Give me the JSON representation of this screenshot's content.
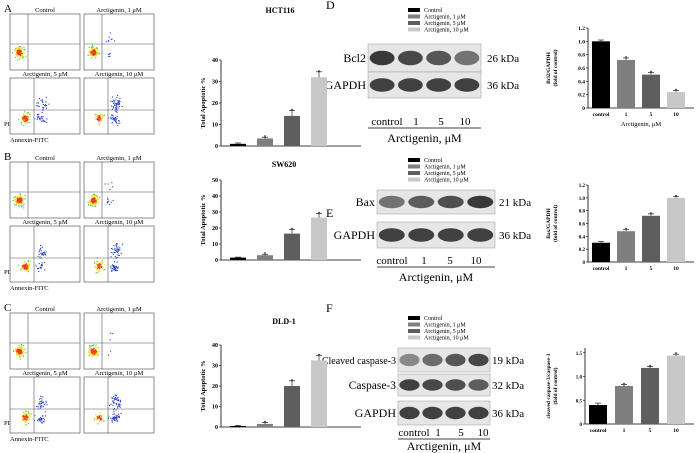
{
  "panels": {
    "A": {
      "letter": "A",
      "flow_labels": [
        "Control",
        "Arctigenin, 1 μM",
        "Arctigenin, 5 μM",
        "Arctigenin, 10 μM"
      ],
      "axis_x": "Annexin-FITC",
      "axis_y": "PI"
    },
    "B": {
      "letter": "B",
      "flow_labels": [
        "Control",
        "Arctigenin, 1 μM",
        "Arctigenin, 5 μM",
        "Arctigenin, 10 μM"
      ],
      "axis_x": "Annexin-FITC",
      "axis_y": "PI"
    },
    "C": {
      "letter": "C",
      "flow_labels": [
        "Control",
        "Arctigenin, 1 μM",
        "Arctigenin, 5 μM",
        "Arctigenin, 10 μM"
      ],
      "axis_x": "Annexin-FITC",
      "axis_y": "PI"
    },
    "D": {
      "letter": "D",
      "bands": [
        "Bcl2",
        "GAPDH"
      ],
      "kda": [
        "26 kDa",
        "36 kDa"
      ],
      "lanes": [
        "control",
        "1",
        "5",
        "10"
      ],
      "treatment": "Arctigenin, μM"
    },
    "E": {
      "letter": "E",
      "bands": [
        "Bax",
        "GAPDH"
      ],
      "kda": [
        "21 kDa",
        "36 kDa"
      ],
      "lanes": [
        "control",
        "1",
        "5",
        "10"
      ],
      "treatment": "Arctigenin, μM"
    },
    "F": {
      "letter": "F",
      "bands": [
        "Cleaved caspase-3",
        "Caspase-3",
        "GAPDH"
      ],
      "kda": [
        "19 kDa",
        "32 kDa",
        "36 kDa"
      ],
      "lanes": [
        "control",
        "1",
        "5",
        "10"
      ],
      "treatment": "Arctigenin, μM"
    }
  },
  "colors": {
    "control": "#000000",
    "dose1": "#7f7f7f",
    "dose5": "#5e5e5e",
    "dose10": "#c8c8c8"
  },
  "chart_data": [
    {
      "type": "bar",
      "title": "HCT116",
      "ylabel": "Total Apoptotic %",
      "categories": [
        "Control",
        "Arctigenin, 1 μM",
        "Arctigenin, 5 μM",
        "Arctigenin, 10 μM"
      ],
      "values": [
        1,
        3.5,
        14,
        32
      ],
      "errors": [
        0.4,
        0.6,
        2.5,
        2.5
      ],
      "sig": [
        "",
        "*",
        "*",
        "*"
      ],
      "yticks": [
        0,
        10,
        20,
        30,
        40
      ],
      "ytick_labels": [
        "0",
        "10",
        "20",
        "30",
        "40"
      ],
      "ylim": [
        0,
        40
      ],
      "legend": [
        "Control",
        "Arctigenin, 1 μM",
        "Arctigenin, 5 μM",
        "Arctigenin, 10 μM"
      ],
      "legend_position": "top-right"
    },
    {
      "type": "bar",
      "title": "SW620",
      "ylabel": "Total Apoptotic %",
      "categories": [
        "Control",
        "Arctigenin, 1 μM",
        "Arctigenin, 5 μM",
        "Arctigenin, 10 μM"
      ],
      "values": [
        1.5,
        3,
        16.5,
        26.5
      ],
      "errors": [
        0.3,
        0.6,
        2.5,
        2.5
      ],
      "sig": [
        "",
        "*",
        "*",
        "*"
      ],
      "yticks": [
        0,
        10,
        20,
        30,
        40,
        50
      ],
      "ytick_labels": [
        "0",
        "10",
        "20",
        "30",
        "40",
        "50"
      ],
      "ylim": [
        0,
        50
      ],
      "legend": [
        "Control",
        "Arctigenin, 1 μM",
        "Arctigenin, 5 μM",
        "Arctigenin, 10 μM"
      ],
      "legend_position": "top-right"
    },
    {
      "type": "bar",
      "title": "DLD-1",
      "ylabel": "Total Apoptotic %",
      "categories": [
        "Control",
        "Arctigenin, 1 μM",
        "Arctigenin, 5 μM",
        "Arctigenin, 10 μM"
      ],
      "values": [
        0.5,
        1.5,
        20,
        32.5
      ],
      "errors": [
        0.3,
        0.6,
        2.5,
        2.5
      ],
      "sig": [
        "",
        "*",
        "*",
        "*"
      ],
      "yticks": [
        0,
        10,
        20,
        30,
        40
      ],
      "ytick_labels": [
        "0",
        "10",
        "20",
        "30",
        "40"
      ],
      "ylim": [
        0,
        40
      ],
      "legend": [
        "Control",
        "Arctigenin, 1 μM",
        "Arctigenin, 5 μM",
        "Arctigenin, 10 μM"
      ],
      "legend_position": "top-right"
    },
    {
      "type": "bar",
      "title": "",
      "ylabel": "Bcl2/GAPDH\n(fold of control)",
      "xlabel": "Arctigenin, μM",
      "categories": [
        "control",
        "1",
        "5",
        "10"
      ],
      "values": [
        1.0,
        0.72,
        0.5,
        0.24
      ],
      "errors": [
        0.02,
        0.03,
        0.03,
        0.02
      ],
      "sig": [
        "",
        "*",
        "*",
        "*"
      ],
      "yticks": [
        0,
        0.2,
        0.4,
        0.6,
        0.8,
        1.0,
        1.2
      ],
      "ytick_labels": [
        "0",
        "0.2",
        "0.4",
        "0.6",
        "0.8",
        "1.0",
        "1.2"
      ],
      "ylim": [
        0,
        1.2
      ]
    },
    {
      "type": "bar",
      "title": "",
      "ylabel": "Bax/GAPDH\n(fold of control)",
      "categories": [
        "control",
        "1",
        "5",
        "10"
      ],
      "values": [
        0.3,
        0.48,
        0.72,
        1.0
      ],
      "errors": [
        0.02,
        0.03,
        0.03,
        0.02
      ],
      "sig": [
        "",
        "*",
        "*",
        "*"
      ],
      "yticks": [
        0,
        0.2,
        0.4,
        0.6,
        0.8,
        1.0,
        1.2
      ],
      "ytick_labels": [
        "0",
        "0.2",
        "0.4",
        "0.6",
        "0.8",
        "1.0",
        "1.2"
      ],
      "ylim": [
        0,
        1.2
      ]
    },
    {
      "type": "bar",
      "title": "",
      "ylabel": "cleaved caspase-3/caspase-3\n(fold of control)",
      "categories": [
        "control",
        "1",
        "5",
        "10"
      ],
      "values": [
        0.4,
        0.8,
        1.18,
        1.44
      ],
      "errors": [
        0.04,
        0.03,
        0.03,
        0.03
      ],
      "sig": [
        "",
        "*",
        "*",
        "*"
      ],
      "yticks": [
        0,
        0.5,
        1.0,
        1.5
      ],
      "ytick_labels": [
        "0",
        "0.5",
        "1.0",
        "1.5"
      ],
      "ylim": [
        0,
        1.6
      ]
    }
  ]
}
